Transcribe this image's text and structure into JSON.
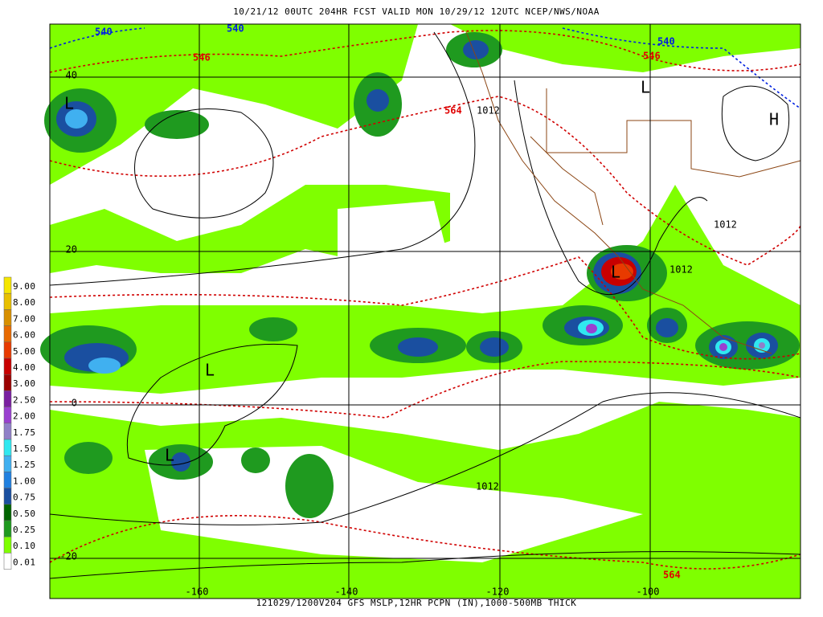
{
  "header": {
    "title": "10/21/12 00UTC  204HR  FCST VALID MON 10/29/12 12UTC  NCEP/NWS/NOAA"
  },
  "footer": {
    "caption": "121029/1200V204 GFS MSLP,12HR PCPN (IN),1000-500MB THICK"
  },
  "legend": {
    "labels": [
      "9.00",
      "8.00",
      "7.00",
      "6.00",
      "5.00",
      "4.00",
      "3.00",
      "2.50",
      "2.00",
      "1.75",
      "1.50",
      "1.25",
      "1.00",
      "0.75",
      "0.50",
      "0.25",
      "0.10",
      "0.01"
    ],
    "colors": [
      "#f5e600",
      "#e8c000",
      "#d89000",
      "#e86a00",
      "#e83a00",
      "#c80000",
      "#9a0000",
      "#7a1fa0",
      "#9a40d0",
      "#9080c8",
      "#30e8f0",
      "#40b0f0",
      "#2080e0",
      "#1a4fa0",
      "#006400",
      "#1f9a1f",
      "#7fff00",
      "#ffffff"
    ]
  },
  "map": {
    "lat_labels": [
      "40",
      "20",
      "0",
      "-20"
    ],
    "lon_labels": [
      "-160",
      "-140",
      "-120",
      "-100"
    ],
    "contour_labels": [
      "540",
      "540",
      "540",
      "546",
      "546",
      "564",
      "564",
      "1012",
      "1012",
      "1012",
      "1012",
      "L",
      "L",
      "L",
      "L",
      "L",
      "H"
    ]
  }
}
